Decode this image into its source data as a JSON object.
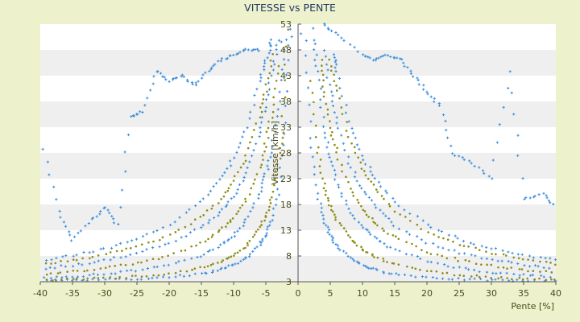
{
  "chart_data": {
    "type": "scatter",
    "title": "VITESSE vs PENTE",
    "xlabel": "Pente [%]",
    "ylabel": "Vitesse [km/h]",
    "xlim": [
      -40,
      40
    ],
    "ylim": [
      3,
      53
    ],
    "xticks": [
      -40,
      -35,
      -30,
      -25,
      -20,
      -15,
      -10,
      -5,
      0,
      5,
      10,
      15,
      20,
      25,
      30,
      35,
      40
    ],
    "yticks": [
      3,
      8,
      13,
      18,
      23,
      28,
      33,
      38,
      43,
      48,
      53
    ],
    "grid": "horizontal alternating bands",
    "legend": "none",
    "colors": {
      "plot_bg": "#ffffff",
      "band": "#efefef",
      "page_bg": "#eef2cc",
      "series_a": "#3d8fdc",
      "series_b": "#8c8c16",
      "axis": "#555555"
    },
    "series": [
      {
        "color": "#3d8fdc",
        "marker": "+",
        "curves": [
          {
            "k": 14,
            "points": [
              [
                -1.2,
                52
              ],
              [
                -2,
                34
              ],
              [
                -3,
                21
              ],
              [
                -4,
                15
              ],
              [
                -5,
                12
              ],
              [
                -6,
                10.2
              ],
              [
                -8,
                7.6
              ],
              [
                -10,
                6.3
              ],
              [
                -12,
                5.3
              ],
              [
                -15,
                4.5
              ],
              [
                -20,
                4
              ],
              [
                -25,
                3.6
              ],
              [
                -30,
                3.4
              ],
              [
                -35,
                3.3
              ],
              [
                -40,
                3.2
              ]
            ]
          },
          {
            "k": 30,
            "points": [
              [
                -2,
                50
              ],
              [
                -3,
                38
              ],
              [
                -4,
                29
              ],
              [
                -5,
                24
              ],
              [
                -6,
                20
              ],
              [
                -8,
                15
              ],
              [
                -10,
                12
              ],
              [
                -12,
                10
              ],
              [
                -15,
                8
              ],
              [
                -20,
                6.3
              ],
              [
                -25,
                5.2
              ],
              [
                -30,
                4.5
              ],
              [
                -35,
                4
              ],
              [
                -40,
                3.8
              ]
            ]
          },
          {
            "k": 48,
            "points": [
              [
                -3,
                50
              ],
              [
                -4,
                44
              ],
              [
                -5,
                37
              ],
              [
                -6,
                31
              ],
              [
                -8,
                24
              ],
              [
                -10,
                19.5
              ],
              [
                -12,
                16.5
              ],
              [
                -15,
                13.5
              ],
              [
                -20,
                10.5
              ],
              [
                -25,
                8.5
              ],
              [
                -30,
                7.1
              ],
              [
                -35,
                6.2
              ],
              [
                -40,
                5.5
              ]
            ]
          },
          {
            "k": 70,
            "points": [
              [
                -4,
                50
              ],
              [
                -5,
                46
              ],
              [
                -6,
                42
              ],
              [
                -8,
                33
              ],
              [
                -10,
                27
              ],
              [
                -12,
                23
              ],
              [
                -15,
                18.5
              ],
              [
                -20,
                14
              ],
              [
                -25,
                11.2
              ],
              [
                -30,
                9.4
              ],
              [
                -35,
                8.1
              ],
              [
                -40,
                7.1
              ]
            ]
          },
          {
            "k": 1.2,
            "points": [
              [
                1.2,
                50
              ],
              [
                2,
                31
              ],
              [
                3,
                20
              ],
              [
                4,
                15
              ],
              [
                5,
                12
              ],
              [
                6,
                10
              ],
              [
                8,
                7.7
              ],
              [
                10,
                6.2
              ],
              [
                12,
                5.3
              ],
              [
                15,
                4.5
              ],
              [
                20,
                3.9
              ],
              [
                25,
                3.5
              ],
              [
                30,
                3.3
              ],
              [
                35,
                3.2
              ],
              [
                40,
                3.1
              ]
            ]
          },
          {
            "k": 2,
            "points": [
              [
                2.5,
                50
              ],
              [
                3,
                44
              ],
              [
                4,
                33
              ],
              [
                5,
                27
              ],
              [
                6,
                22
              ],
              [
                8,
                17
              ],
              [
                10,
                13.6
              ],
              [
                12,
                11.4
              ],
              [
                15,
                9.2
              ],
              [
                20,
                7
              ],
              [
                25,
                5.7
              ],
              [
                30,
                4.8
              ],
              [
                35,
                4.3
              ],
              [
                40,
                3.9
              ]
            ]
          },
          {
            "k": 3,
            "points": [
              [
                4,
                48
              ],
              [
                5,
                40
              ],
              [
                6,
                34
              ],
              [
                8,
                26
              ],
              [
                10,
                21
              ],
              [
                12,
                17.5
              ],
              [
                15,
                14
              ],
              [
                20,
                10.6
              ],
              [
                25,
                8.6
              ],
              [
                30,
                7.3
              ],
              [
                35,
                6.3
              ],
              [
                40,
                5.6
              ]
            ]
          },
          {
            "k": 4,
            "points": [
              [
                5.5,
                47
              ],
              [
                6,
                44
              ],
              [
                8,
                34
              ],
              [
                10,
                27.5
              ],
              [
                12,
                23
              ],
              [
                15,
                18.6
              ],
              [
                20,
                14
              ],
              [
                25,
                11.3
              ],
              [
                30,
                9.5
              ],
              [
                35,
                8.2
              ],
              [
                40,
                7.2
              ]
            ]
          }
        ]
      },
      {
        "color": "#8c8c16",
        "marker": "dot",
        "curves": [
          {
            "k": 20,
            "points": [
              [
                -1.5,
                52
              ],
              [
                -2.5,
                32
              ],
              [
                -3,
                26
              ],
              [
                -4,
                19.5
              ],
              [
                -5,
                15.8
              ],
              [
                -6,
                13.2
              ],
              [
                -8,
                10
              ],
              [
                -10,
                8.2
              ],
              [
                -12,
                6.9
              ],
              [
                -15,
                5.7
              ],
              [
                -20,
                4.6
              ],
              [
                -25,
                4
              ],
              [
                -30,
                3.7
              ],
              [
                -35,
                3.5
              ],
              [
                -40,
                3.4
              ]
            ]
          },
          {
            "k": 38,
            "points": [
              [
                -3,
                45
              ],
              [
                -4,
                36
              ],
              [
                -5,
                30
              ],
              [
                -6,
                25
              ],
              [
                -8,
                19
              ],
              [
                -10,
                15.5
              ],
              [
                -12,
                13
              ],
              [
                -15,
                10.5
              ],
              [
                -20,
                8
              ],
              [
                -25,
                6.7
              ],
              [
                -30,
                5.7
              ],
              [
                -35,
                5
              ],
              [
                -40,
                4.5
              ]
            ]
          },
          {
            "k": 58,
            "points": [
              [
                -4,
                47
              ],
              [
                -5,
                40
              ],
              [
                -6,
                35
              ],
              [
                -8,
                27.5
              ],
              [
                -10,
                22.5
              ],
              [
                -12,
                19
              ],
              [
                -15,
                15.5
              ],
              [
                -20,
                12
              ],
              [
                -25,
                9.8
              ],
              [
                -30,
                8.3
              ],
              [
                -35,
                7.2
              ],
              [
                -40,
                6.4
              ]
            ]
          },
          {
            "k": 1.6,
            "points": [
              [
                2,
                42
              ],
              [
                3,
                29
              ],
              [
                4,
                22
              ],
              [
                5,
                18
              ],
              [
                6,
                15
              ],
              [
                8,
                11.5
              ],
              [
                10,
                9.3
              ],
              [
                12,
                7.9
              ],
              [
                15,
                6.5
              ],
              [
                20,
                5.1
              ],
              [
                25,
                4.3
              ],
              [
                30,
                3.9
              ],
              [
                35,
                3.6
              ],
              [
                40,
                3.5
              ]
            ]
          },
          {
            "k": 2.5,
            "points": [
              [
                3.5,
                46
              ],
              [
                4,
                40
              ],
              [
                5,
                33
              ],
              [
                6,
                28
              ],
              [
                8,
                21
              ],
              [
                10,
                17
              ],
              [
                12,
                14.3
              ],
              [
                15,
                11.6
              ],
              [
                20,
                8.8
              ],
              [
                25,
                7.2
              ],
              [
                30,
                6.1
              ],
              [
                35,
                5.3
              ],
              [
                40,
                4.7
              ]
            ]
          },
          {
            "k": 3.5,
            "points": [
              [
                5,
                46
              ],
              [
                6,
                40
              ],
              [
                8,
                31
              ],
              [
                10,
                25
              ],
              [
                12,
                21
              ],
              [
                15,
                16.8
              ],
              [
                20,
                12.6
              ],
              [
                25,
                10.2
              ],
              [
                30,
                8.6
              ],
              [
                35,
                7.4
              ],
              [
                40,
                6.5
              ]
            ]
          }
        ]
      },
      {
        "color": "#3d8fdc",
        "marker": "+",
        "curves": [
          {
            "k": 0,
            "points": [
              [
                -40,
                31
              ],
              [
                -37,
                16.5
              ],
              [
                -35,
                11
              ],
              [
                -32,
                15
              ],
              [
                -30,
                17.5
              ],
              [
                -28,
                14
              ],
              [
                -26,
                35
              ],
              [
                -24,
                36
              ],
              [
                -22,
                44
              ],
              [
                -20,
                42
              ],
              [
                -18,
                43
              ],
              [
                -16,
                41
              ],
              [
                -14,
                44
              ],
              [
                -12,
                46
              ],
              [
                -10,
                47
              ],
              [
                -8,
                48
              ],
              [
                -6,
                48
              ],
              [
                4,
                53
              ],
              [
                6,
                51
              ],
              [
                10,
                47
              ],
              [
                12,
                46
              ],
              [
                14,
                47
              ],
              [
                16,
                46
              ],
              [
                18,
                43
              ],
              [
                20,
                40
              ],
              [
                22,
                37
              ],
              [
                24,
                28
              ],
              [
                27,
                26
              ],
              [
                30,
                23
              ],
              [
                33,
                44
              ],
              [
                35,
                19
              ],
              [
                38,
                20
              ],
              [
                40,
                17.5
              ]
            ]
          }
        ]
      }
    ]
  }
}
